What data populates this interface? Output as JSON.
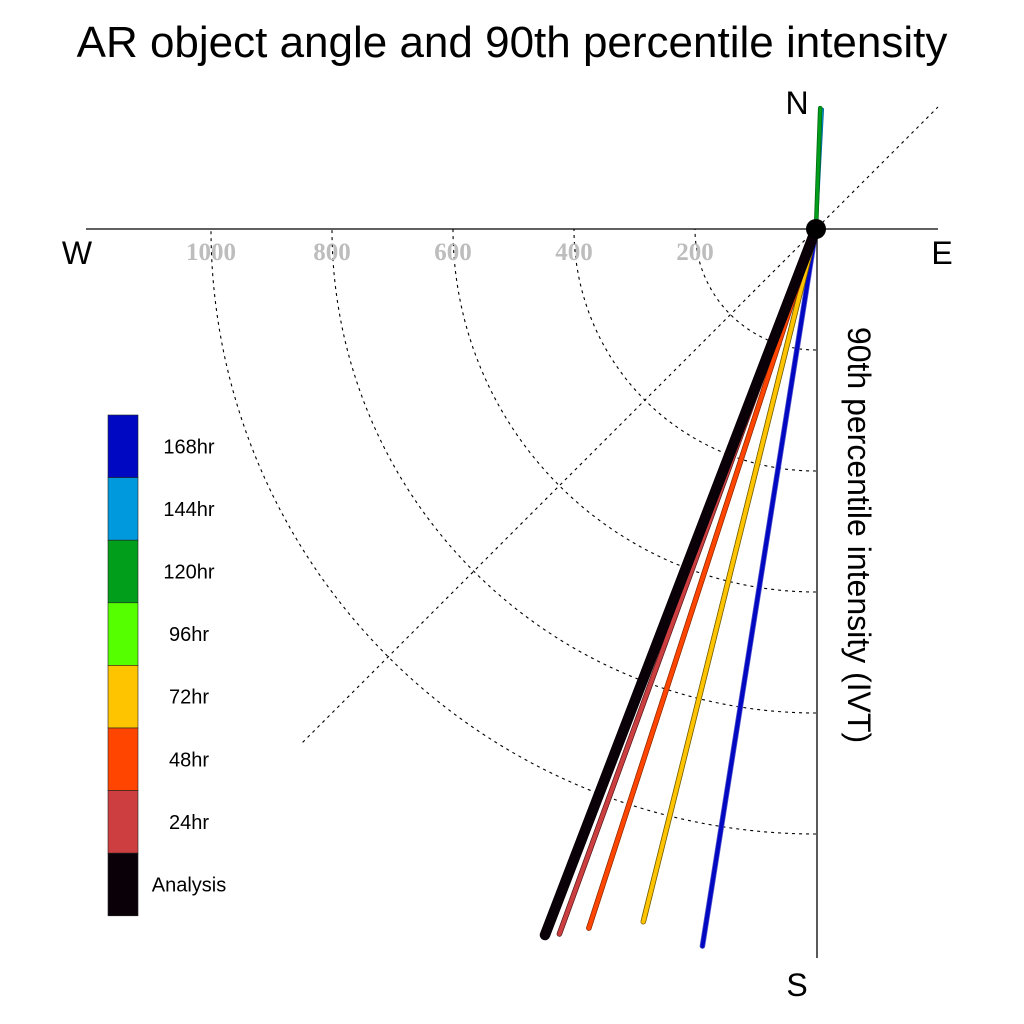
{
  "chart_data": {
    "type": "polar-line",
    "title": "AR object angle and 90th percentile intensity",
    "radial_axis_label": "90th percentile intensity (IVT)",
    "compass": {
      "north": "N",
      "south": "S",
      "east": "E",
      "west": "W"
    },
    "ring_values": [
      200,
      400,
      600,
      800,
      1000
    ],
    "ring_labels": [
      "200",
      "400",
      "600",
      "800",
      "1000"
    ],
    "radial_max": 1200,
    "grid": true,
    "legend_position": "left",
    "series": [
      {
        "name": "Analysis",
        "color": "#0a0008",
        "angle_deg": 21,
        "intensity": 1250,
        "width": 9,
        "edge": "#0a0008"
      },
      {
        "name": "24hr",
        "color": "#cc3e40",
        "angle_deg": 20,
        "intensity": 1240,
        "width": 4,
        "edge": "#5a1a1a"
      },
      {
        "name": "48hr",
        "color": "#ff4500",
        "angle_deg": 18,
        "intensity": 1215,
        "width": 4,
        "edge": "#8a2a00"
      },
      {
        "name": "72hr",
        "color": "#ffc400",
        "angle_deg": 14,
        "intensity": 1180,
        "width": 4,
        "edge": "#7a5a00"
      },
      {
        "name": "96hr",
        "color": "#55ff00",
        "angle_deg": 14,
        "intensity": 1172,
        "width": 4,
        "edge": "#2a8a00"
      },
      {
        "name": "120hr",
        "color": "#009e1a",
        "angle_deg": 182,
        "intensity": 200,
        "width": 3,
        "edge": "#006610"
      },
      {
        "name": "144hr",
        "color": "#0099dd",
        "angle_deg": 183,
        "intensity": 198,
        "width": 2,
        "edge": "#006699"
      },
      {
        "name": "168hr",
        "color": "#0008c2",
        "angle_deg": 9,
        "intensity": 1200,
        "width": 4,
        "edge": "#5555cc"
      }
    ],
    "legend_order": [
      "168hr",
      "144hr",
      "120hr",
      "96hr",
      "72hr",
      "48hr",
      "24hr",
      "Analysis"
    ]
  }
}
